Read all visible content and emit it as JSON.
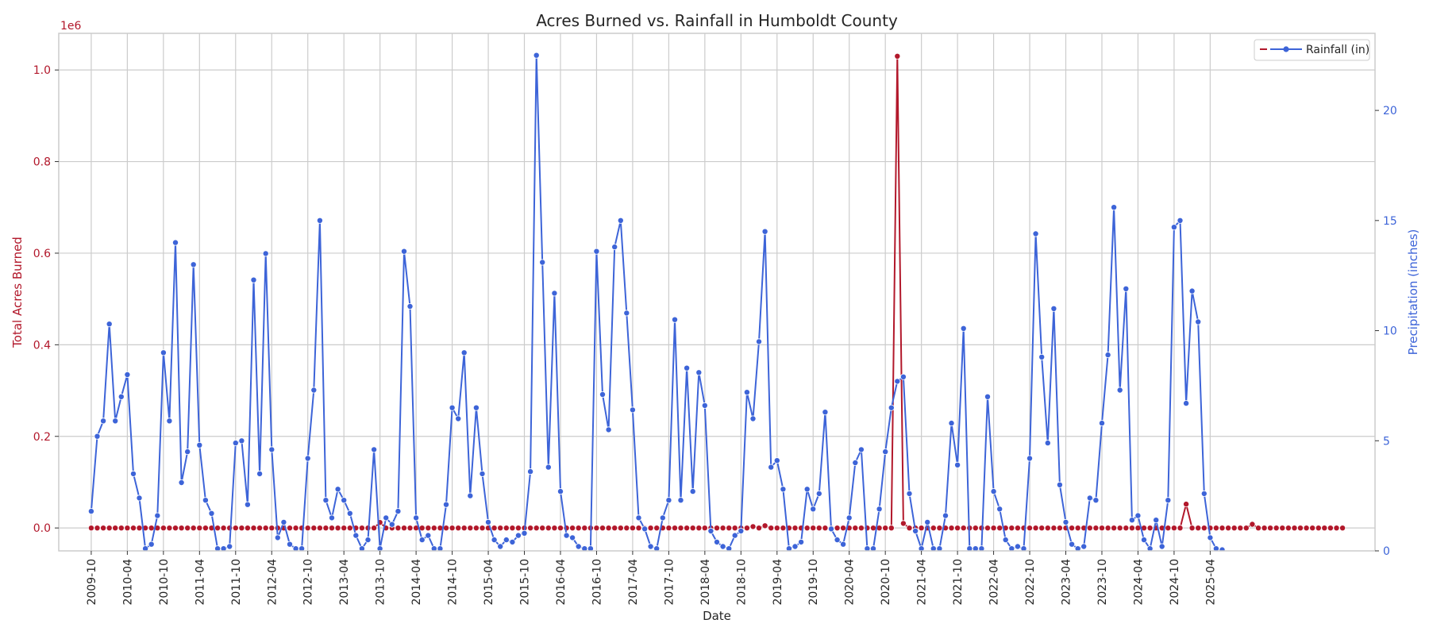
{
  "chart_data": {
    "type": "line",
    "title": "Acres Burned vs. Rainfall in Humboldt County",
    "xlabel": "Date",
    "y_left_label": "Total Acres Burned",
    "y_right_label": "Precipitation (inches)",
    "y_left_offset_text": "1e6",
    "y_left_lim": [
      -0.05,
      1.08
    ],
    "y_left_ticks": [
      "0.0",
      "0.2",
      "0.4",
      "0.6",
      "0.8",
      "1.0"
    ],
    "y_right_lim": [
      0,
      23.5
    ],
    "y_right_ticks": [
      "0",
      "5",
      "10",
      "15",
      "20"
    ],
    "x_start": "2009-10",
    "x_ticks": [
      "2009-10",
      "2010-04",
      "2010-10",
      "2011-04",
      "2011-10",
      "2012-04",
      "2012-10",
      "2013-04",
      "2013-10",
      "2014-04",
      "2014-10",
      "2015-04",
      "2015-10",
      "2016-04",
      "2016-10",
      "2017-04",
      "2017-10",
      "2018-04",
      "2018-10",
      "2019-04",
      "2019-10",
      "2020-04",
      "2020-10",
      "2021-04",
      "2021-10",
      "2022-04",
      "2022-10",
      "2023-04",
      "2023-10",
      "2024-04",
      "2024-10",
      "2025-04"
    ],
    "grid": true,
    "legend_position": "top-right",
    "colors": {
      "acres": "#b2182b",
      "rainfall": "#3d64d8",
      "grid": "#cccccc",
      "spine": "#cccccc"
    },
    "series": [
      {
        "name": "Acres Burned",
        "axis": "left",
        "values": [
          0,
          0,
          0,
          0,
          0,
          0,
          0,
          0,
          0,
          0,
          0,
          0,
          0,
          0,
          0,
          0,
          0,
          0,
          0,
          0,
          0,
          0,
          0,
          0,
          0,
          0,
          0,
          0,
          0,
          0,
          0,
          0,
          0,
          0,
          0,
          0,
          0,
          0,
          0,
          0,
          0,
          0,
          0,
          0,
          0,
          0,
          0,
          0,
          0.012,
          0,
          0,
          0,
          0,
          0,
          0,
          0,
          0,
          0,
          0,
          0,
          0,
          0,
          0,
          0,
          0,
          0,
          0,
          0,
          0,
          0,
          0,
          0,
          0,
          0,
          0,
          0,
          0,
          0,
          0,
          0,
          0,
          0,
          0,
          0,
          0,
          0,
          0,
          0,
          0,
          0,
          0,
          0,
          0,
          0,
          0,
          0,
          0,
          0,
          0,
          0,
          0,
          0,
          0,
          0,
          0,
          0,
          0,
          0,
          0,
          0,
          0.003,
          0,
          0.005,
          0,
          0,
          0,
          0,
          0,
          0,
          0,
          0,
          0,
          0,
          0,
          0,
          0,
          0,
          0,
          0,
          0,
          0,
          0,
          0,
          0,
          1.03,
          0.01,
          0,
          0,
          0,
          0,
          0,
          0,
          0,
          0,
          0,
          0,
          0,
          0,
          0,
          0,
          0,
          0,
          0,
          0,
          0,
          0,
          0,
          0,
          0,
          0,
          0,
          0,
          0,
          0,
          0,
          0,
          0,
          0,
          0,
          0,
          0,
          0,
          0,
          0,
          0,
          0,
          0,
          0,
          0,
          0,
          0,
          0,
          0.052,
          0,
          0,
          0,
          0,
          0,
          0,
          0,
          0,
          0,
          0,
          0.008,
          0,
          0,
          0,
          0,
          0,
          0,
          0,
          0,
          0,
          0,
          0,
          0,
          0,
          0,
          0
        ]
      },
      {
        "name": "Rainfall (in)",
        "axis": "right",
        "values": [
          1.8,
          5.2,
          5.9,
          10.3,
          5.9,
          7.0,
          8.0,
          3.5,
          2.4,
          0.1,
          0.3,
          1.6,
          9.0,
          5.9,
          14.0,
          3.1,
          4.5,
          13.0,
          4.8,
          2.3,
          1.7,
          0.1,
          0.1,
          0.2,
          4.9,
          5.0,
          2.1,
          12.3,
          3.5,
          13.5,
          4.6,
          0.6,
          1.3,
          0.3,
          0.1,
          0.1,
          4.2,
          7.3,
          15.0,
          2.3,
          1.5,
          2.8,
          2.3,
          1.7,
          0.7,
          0.1,
          0.5,
          4.6,
          0.1,
          1.5,
          1.2,
          1.8,
          13.6,
          11.1,
          1.5,
          0.5,
          0.7,
          0.1,
          0.1,
          2.1,
          6.5,
          6.0,
          9.0,
          2.5,
          6.5,
          3.5,
          1.3,
          0.5,
          0.2,
          0.5,
          0.4,
          0.7,
          0.8,
          3.6,
          22.5,
          13.1,
          3.8,
          11.7,
          2.7,
          0.7,
          0.6,
          0.2,
          0.1,
          0.1,
          13.6,
          7.1,
          5.5,
          13.8,
          15.0,
          10.8,
          6.4,
          1.5,
          1.0,
          0.2,
          0.1,
          1.5,
          2.3,
          10.5,
          2.3,
          8.3,
          2.7,
          8.1,
          6.6,
          0.9,
          0.4,
          0.2,
          0.1,
          0.7,
          0.9,
          7.2,
          6.0,
          9.5,
          14.5,
          3.8,
          4.1,
          2.8,
          0.1,
          0.2,
          0.4,
          2.8,
          1.9,
          2.6,
          6.3,
          1.0,
          0.5,
          0.3,
          1.5,
          4.0,
          4.6,
          0.1,
          0.1,
          1.9,
          4.5,
          6.5,
          7.7,
          7.9,
          2.6,
          0.9,
          0.1,
          1.3,
          0.1,
          0.1,
          1.6,
          5.8,
          3.9,
          10.1,
          0.1,
          0.1,
          0.1,
          7.0,
          2.7,
          1.9,
          0.5,
          0.1,
          0.2,
          0.1,
          4.2,
          14.4,
          8.8,
          4.9,
          11.0,
          3.0,
          1.3,
          0.3,
          0.1,
          0.2,
          2.4,
          2.3,
          5.8,
          8.9,
          15.6,
          7.3,
          11.9,
          1.4,
          1.6,
          0.5,
          0.1,
          1.4,
          0.2,
          2.3,
          14.7,
          15.0,
          6.7,
          11.8,
          10.4,
          2.6,
          0.6,
          0.1,
          0.05
        ]
      }
    ]
  }
}
